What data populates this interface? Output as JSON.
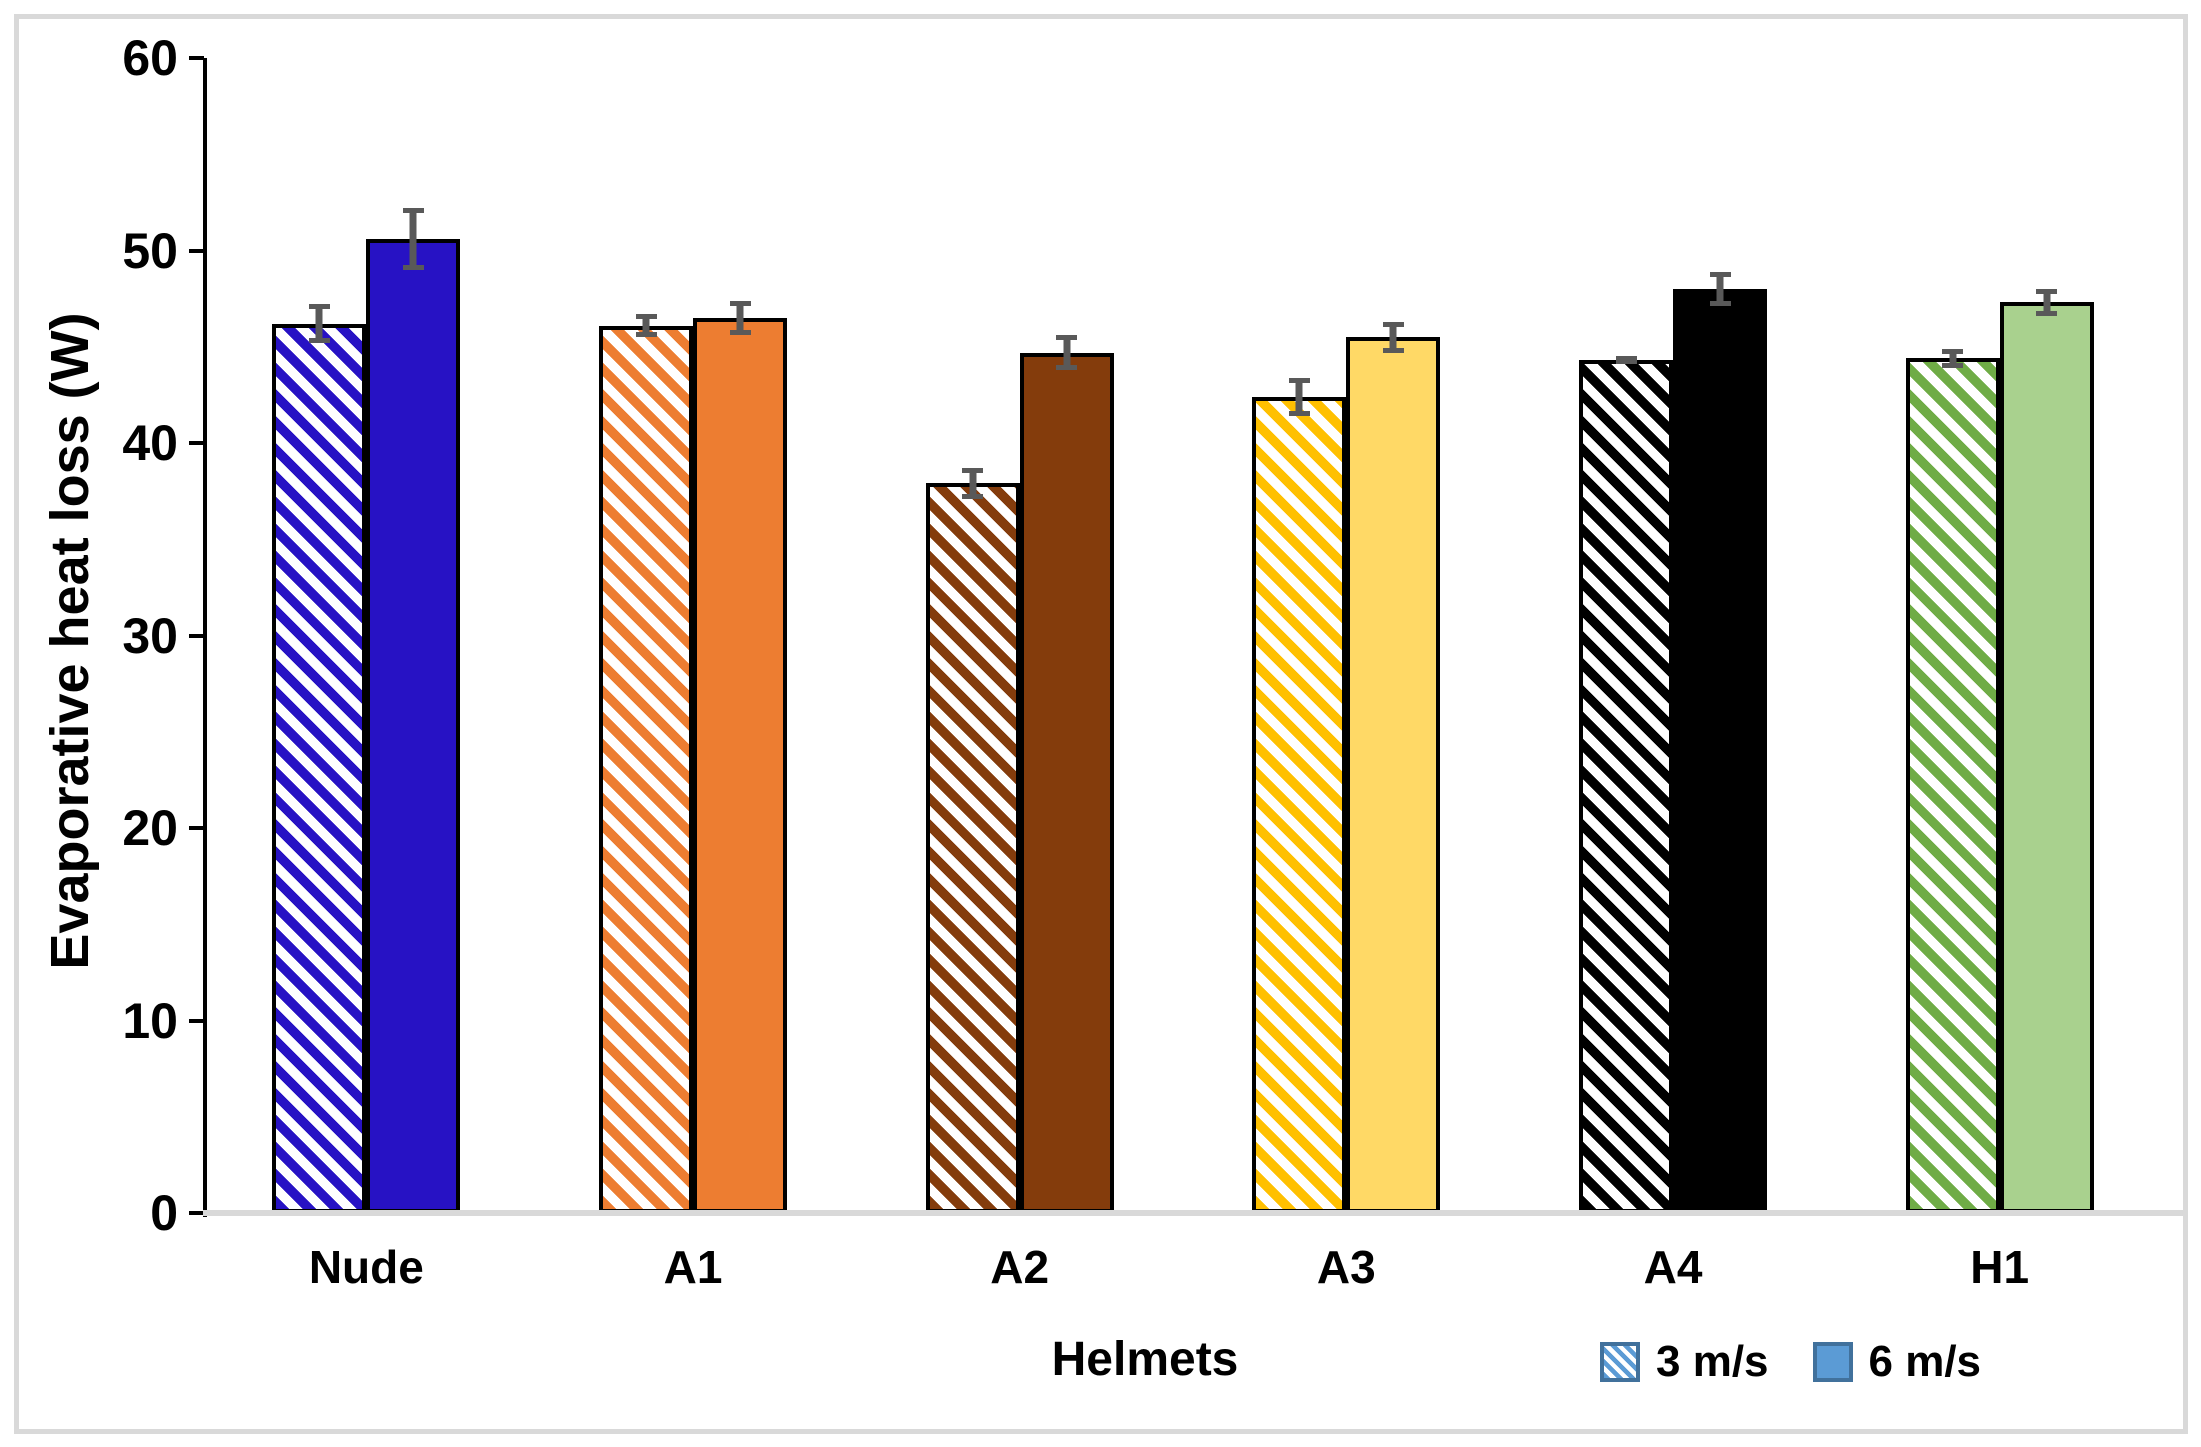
{
  "chart_data": {
    "type": "bar",
    "title": "",
    "xlabel": "Helmets",
    "ylabel": "Evaporative heat loss (W)",
    "categories": [
      "Nude",
      "A1",
      "A2",
      "A3",
      "A4",
      "H1"
    ],
    "series": [
      {
        "name": "3 m/s",
        "style": "hatched",
        "values": [
          46.2,
          46.1,
          37.9,
          42.4,
          44.3,
          44.4
        ],
        "errors": [
          1.0,
          0.6,
          0.8,
          1.0,
          0.2,
          0.5
        ],
        "colors": [
          "#2712C4",
          "#ED7D31",
          "#843C0C",
          "#FFC000",
          "#000000",
          "#6FAC46"
        ]
      },
      {
        "name": "6 m/s",
        "style": "solid",
        "values": [
          50.6,
          46.5,
          44.7,
          45.5,
          48.0,
          47.3
        ],
        "errors": [
          1.6,
          0.9,
          0.9,
          0.8,
          0.9,
          0.7
        ],
        "colors": [
          "#2712C4",
          "#ED7D31",
          "#843C0C",
          "#FFD966",
          "#000000",
          "#A9D18E"
        ]
      }
    ],
    "ylim": [
      0,
      60
    ],
    "yticks": [
      0,
      10,
      20,
      30,
      40,
      50,
      60
    ],
    "grid": false,
    "legend_position": "bottom-right",
    "error_bar_color": "#595959",
    "legend": {
      "items": [
        {
          "label": "3 m/s",
          "fill": "#5B9BD5",
          "style": "hatched",
          "border": "#41719C"
        },
        {
          "label": "6 m/s",
          "fill": "#5B9BD5",
          "style": "solid",
          "border": "#41719C"
        }
      ]
    }
  }
}
